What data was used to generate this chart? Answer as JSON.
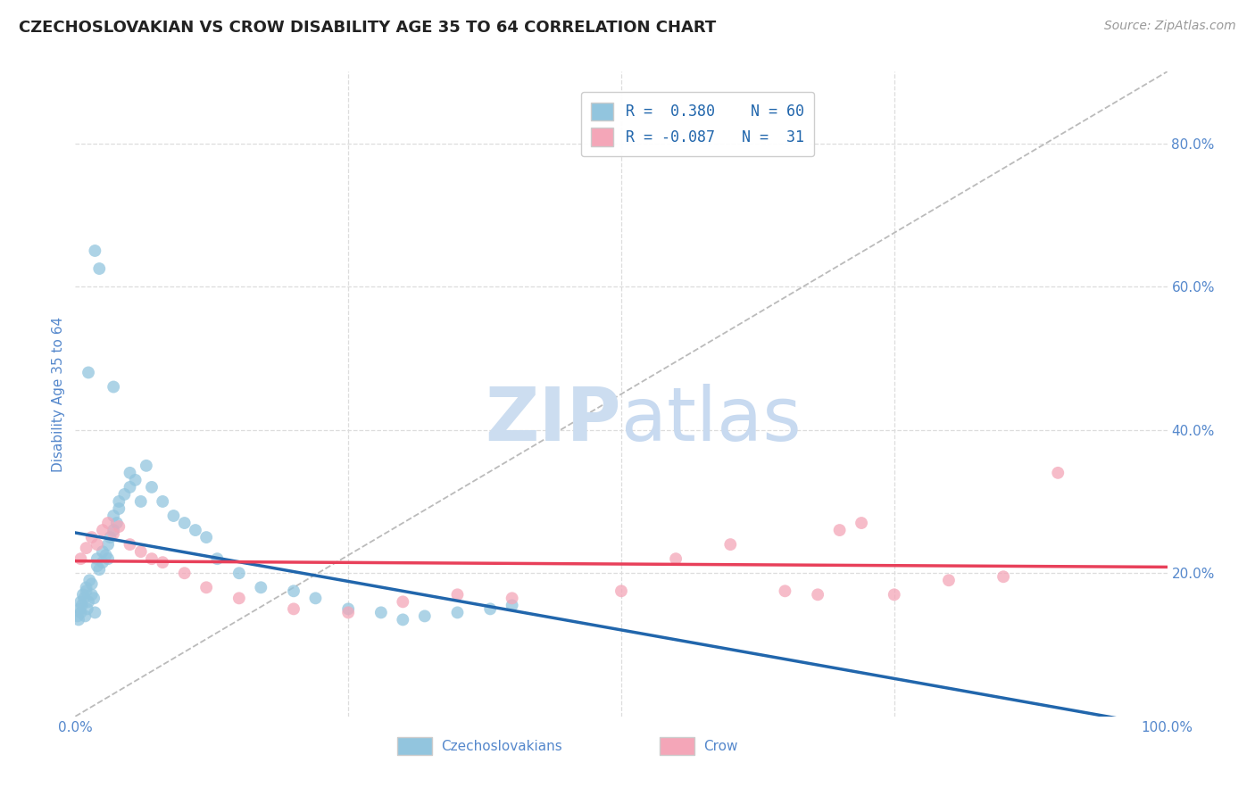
{
  "title": "CZECHOSLOVAKIAN VS CROW DISABILITY AGE 35 TO 64 CORRELATION CHART",
  "source_text": "Source: ZipAtlas.com",
  "ylabel": "Disability Age 35 to 64",
  "blue_color": "#92c5de",
  "pink_color": "#f4a6b8",
  "blue_line_color": "#2166ac",
  "pink_line_color": "#e8405a",
  "dashed_line_color": "#bbbbbb",
  "background_color": "#ffffff",
  "grid_color": "#dddddd",
  "axis_label_color": "#5588cc",
  "watermark_color": "#ccddf0",
  "legend_labels": [
    "Czechoslovakians",
    "Crow"
  ],
  "czech_x": [
    0.2,
    0.3,
    0.4,
    0.5,
    0.5,
    0.6,
    0.7,
    0.8,
    0.9,
    1.0,
    1.0,
    1.1,
    1.2,
    1.3,
    1.5,
    1.5,
    1.7,
    1.8,
    2.0,
    2.0,
    2.2,
    2.5,
    2.5,
    2.8,
    3.0,
    3.0,
    3.2,
    3.5,
    3.5,
    3.8,
    4.0,
    4.0,
    4.5,
    5.0,
    5.0,
    5.5,
    6.0,
    6.5,
    7.0,
    8.0,
    9.0,
    10.0,
    11.0,
    12.0,
    13.0,
    15.0,
    17.0,
    20.0,
    22.0,
    25.0,
    28.0,
    30.0,
    32.0,
    35.0,
    38.0,
    40.0,
    3.5,
    2.2,
    1.8,
    1.2
  ],
  "czech_y": [
    14.0,
    13.5,
    15.0,
    14.5,
    16.0,
    15.5,
    17.0,
    16.5,
    14.0,
    18.0,
    17.5,
    15.0,
    16.0,
    19.0,
    18.5,
    17.0,
    16.5,
    14.5,
    22.0,
    21.0,
    20.5,
    21.5,
    23.0,
    22.5,
    24.0,
    22.0,
    25.0,
    26.0,
    28.0,
    27.0,
    29.0,
    30.0,
    31.0,
    32.0,
    34.0,
    33.0,
    30.0,
    35.0,
    32.0,
    30.0,
    28.0,
    27.0,
    26.0,
    25.0,
    22.0,
    20.0,
    18.0,
    17.5,
    16.5,
    15.0,
    14.5,
    13.5,
    14.0,
    14.5,
    15.0,
    15.5,
    46.0,
    62.5,
    65.0,
    48.0
  ],
  "crow_x": [
    0.5,
    1.0,
    1.5,
    2.0,
    2.5,
    3.0,
    3.5,
    4.0,
    5.0,
    6.0,
    7.0,
    8.0,
    10.0,
    12.0,
    15.0,
    20.0,
    25.0,
    30.0,
    35.0,
    40.0,
    50.0,
    55.0,
    60.0,
    65.0,
    68.0,
    70.0,
    72.0,
    75.0,
    80.0,
    85.0,
    90.0
  ],
  "crow_y": [
    22.0,
    23.5,
    25.0,
    24.0,
    26.0,
    27.0,
    25.5,
    26.5,
    24.0,
    23.0,
    22.0,
    21.5,
    20.0,
    18.0,
    16.5,
    15.0,
    14.5,
    16.0,
    17.0,
    16.5,
    17.5,
    22.0,
    24.0,
    17.5,
    17.0,
    26.0,
    27.0,
    17.0,
    19.0,
    19.5,
    34.0
  ],
  "xlim": [
    0,
    100
  ],
  "ylim": [
    0,
    90
  ],
  "xticks": [
    0,
    100
  ],
  "yticks_right": [
    20,
    40,
    60,
    80
  ],
  "grid_yticks": [
    20,
    40,
    60,
    80
  ],
  "title_fontsize": 13,
  "source_fontsize": 10,
  "tick_fontsize": 11,
  "ylabel_fontsize": 11
}
